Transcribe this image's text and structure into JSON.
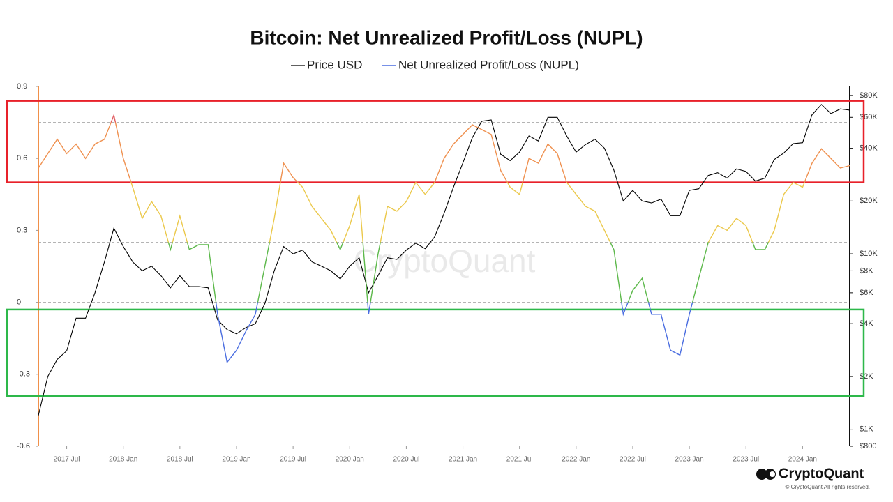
{
  "chart_data": {
    "type": "line",
    "title": "Bitcoin: Net Unrealized Profit/Loss (NUPL)",
    "watermark": "CryptoQuant",
    "brand": "CryptoQuant",
    "copyright": "© CryptoQuant All rights reserved.",
    "x": [
      "2017-04",
      "2017-05",
      "2017-06",
      "2017-07",
      "2017-08",
      "2017-09",
      "2017-10",
      "2017-11",
      "2017-12",
      "2018-01",
      "2018-02",
      "2018-03",
      "2018-04",
      "2018-05",
      "2018-06",
      "2018-07",
      "2018-08",
      "2018-09",
      "2018-10",
      "2018-11",
      "2018-12",
      "2019-01",
      "2019-02",
      "2019-03",
      "2019-04",
      "2019-05",
      "2019-06",
      "2019-07",
      "2019-08",
      "2019-09",
      "2019-10",
      "2019-11",
      "2019-12",
      "2020-01",
      "2020-02",
      "2020-03",
      "2020-04",
      "2020-05",
      "2020-06",
      "2020-07",
      "2020-08",
      "2020-09",
      "2020-10",
      "2020-11",
      "2020-12",
      "2021-01",
      "2021-02",
      "2021-03",
      "2021-04",
      "2021-05",
      "2021-06",
      "2021-07",
      "2021-08",
      "2021-09",
      "2021-10",
      "2021-11",
      "2021-12",
      "2022-01",
      "2022-02",
      "2022-03",
      "2022-04",
      "2022-05",
      "2022-06",
      "2022-07",
      "2022-08",
      "2022-09",
      "2022-10",
      "2022-11",
      "2022-12",
      "2023-01",
      "2023-02",
      "2023-03",
      "2023-04",
      "2023-05",
      "2023-06",
      "2023-07",
      "2023-08",
      "2023-09",
      "2023-10",
      "2023-11",
      "2023-12",
      "2024-01",
      "2024-02",
      "2024-03",
      "2024-04",
      "2024-05",
      "2024-06"
    ],
    "xlim": [
      "2017-04",
      "2024-06"
    ],
    "xticks": [
      {
        "value": "2017-07",
        "label": "2017 Jul"
      },
      {
        "value": "2018-01",
        "label": "2018 Jan"
      },
      {
        "value": "2018-07",
        "label": "2018 Jul"
      },
      {
        "value": "2019-01",
        "label": "2019 Jan"
      },
      {
        "value": "2019-07",
        "label": "2019 Jul"
      },
      {
        "value": "2020-01",
        "label": "2020 Jan"
      },
      {
        "value": "2020-07",
        "label": "2020 Jul"
      },
      {
        "value": "2021-01",
        "label": "2021 Jan"
      },
      {
        "value": "2021-07",
        "label": "2021 Jul"
      },
      {
        "value": "2022-01",
        "label": "2022 Jan"
      },
      {
        "value": "2022-07",
        "label": "2022 Jul"
      },
      {
        "value": "2023-01",
        "label": "2023 Jan"
      },
      {
        "value": "2023-07",
        "label": "2023 Jul"
      },
      {
        "value": "2024-01",
        "label": "2024 Jan"
      }
    ],
    "ylim": [
      -0.6,
      0.9
    ],
    "yticks": [
      -0.6,
      -0.3,
      0,
      0.3,
      0.6,
      0.9
    ],
    "y2lim": [
      800,
      90000
    ],
    "y2scale": "log",
    "y2ticks": [
      {
        "value": 800,
        "label": "$800"
      },
      {
        "value": 1000,
        "label": "$1K"
      },
      {
        "value": 2000,
        "label": "$2K"
      },
      {
        "value": 4000,
        "label": "$4K"
      },
      {
        "value": 6000,
        "label": "$6K"
      },
      {
        "value": 8000,
        "label": "$8K"
      },
      {
        "value": 10000,
        "label": "$10K"
      },
      {
        "value": 20000,
        "label": "$20K"
      },
      {
        "value": 40000,
        "label": "$40K"
      },
      {
        "value": 60000,
        "label": "$60K"
      },
      {
        "value": 80000,
        "label": "$80K"
      }
    ],
    "zone_thresholds": [
      0,
      0.25,
      0.5,
      0.75
    ],
    "zone_colors": [
      "#4a6de0",
      "#5cb84a",
      "#ebc84a",
      "#ef9150",
      "#e05a5e"
    ],
    "highlights": [
      {
        "ylim": [
          0.5,
          0.84
        ],
        "color": "#e8212a"
      },
      {
        "ylim": [
          -0.39,
          -0.03
        ],
        "color": "#2db84a"
      }
    ],
    "series": [
      {
        "name": "Price USD",
        "color": "#000000",
        "axis": "y2",
        "values": [
          1200,
          2000,
          2500,
          2800,
          4300,
          4300,
          6000,
          9000,
          14000,
          11000,
          9000,
          8000,
          8500,
          7500,
          6400,
          7500,
          6500,
          6500,
          6400,
          4200,
          3700,
          3500,
          3800,
          4000,
          5200,
          8000,
          11000,
          10000,
          10500,
          9000,
          8500,
          8000,
          7200,
          8500,
          9500,
          6000,
          7500,
          9500,
          9300,
          10500,
          11500,
          10700,
          12500,
          17000,
          24000,
          33000,
          46000,
          57000,
          58000,
          37000,
          34000,
          38000,
          47000,
          44000,
          60000,
          60000,
          47000,
          38000,
          42000,
          45000,
          40000,
          30000,
          20000,
          23000,
          20000,
          19500,
          20500,
          16500,
          16500,
          23000,
          23500,
          28000,
          29000,
          27000,
          30500,
          29500,
          26000,
          27000,
          34500,
          37500,
          42500,
          43000,
          62000,
          71000,
          63000,
          67000,
          66000
        ]
      },
      {
        "name": "Net Unrealized Profit/Loss (NUPL)",
        "color": "#4a6de0",
        "values": [
          0.56,
          0.62,
          0.68,
          0.62,
          0.66,
          0.6,
          0.66,
          0.68,
          0.78,
          0.6,
          0.48,
          0.35,
          0.42,
          0.36,
          0.22,
          0.36,
          0.22,
          0.24,
          0.24,
          -0.05,
          -0.25,
          -0.2,
          -0.12,
          -0.05,
          0.15,
          0.35,
          0.58,
          0.52,
          0.48,
          0.4,
          0.35,
          0.3,
          0.22,
          0.32,
          0.45,
          -0.05,
          0.2,
          0.4,
          0.38,
          0.42,
          0.5,
          0.45,
          0.5,
          0.6,
          0.66,
          0.7,
          0.74,
          0.72,
          0.7,
          0.55,
          0.48,
          0.45,
          0.6,
          0.58,
          0.66,
          0.62,
          0.5,
          0.45,
          0.4,
          0.38,
          0.3,
          0.22,
          -0.05,
          0.05,
          0.1,
          -0.05,
          -0.05,
          -0.2,
          -0.22,
          -0.05,
          0.1,
          0.25,
          0.32,
          0.3,
          0.35,
          0.32,
          0.22,
          0.22,
          0.3,
          0.45,
          0.5,
          0.48,
          0.58,
          0.64,
          0.6,
          0.56,
          0.57
        ]
      }
    ]
  }
}
